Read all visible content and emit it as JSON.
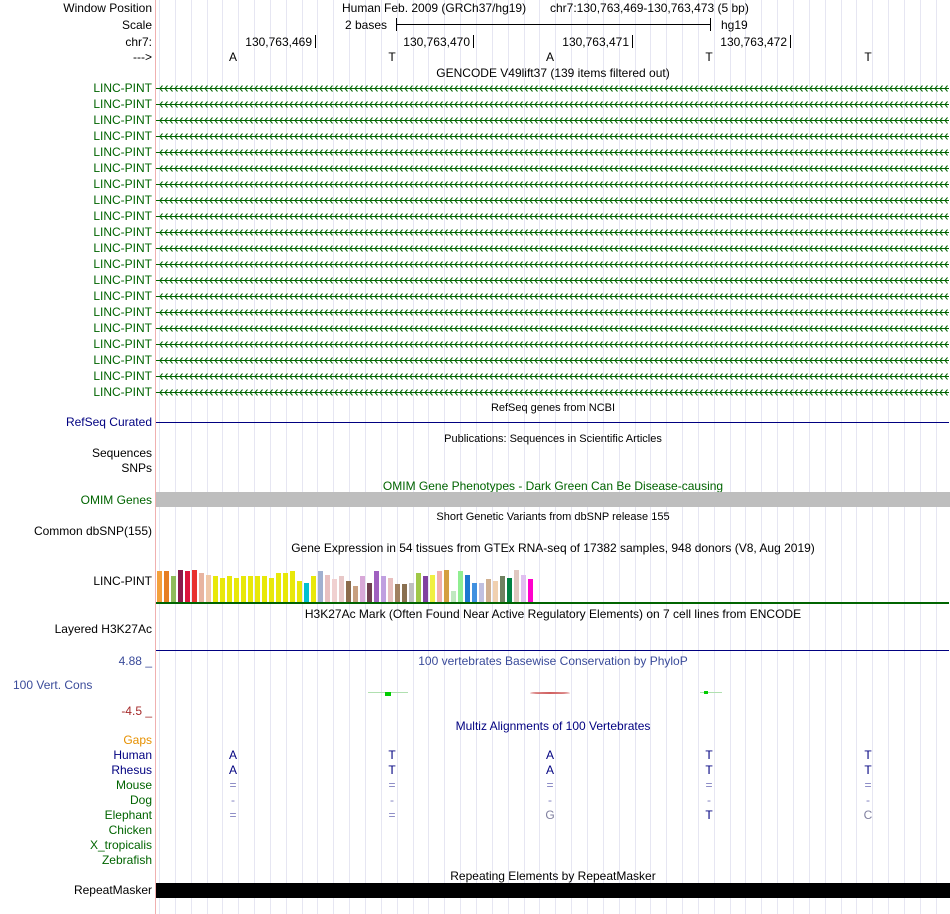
{
  "header": {
    "window_position_label": "Window Position",
    "scale_label": "Scale",
    "chrom_label": "chr7:",
    "strand_label": "--->",
    "assembly": "Human Feb. 2009 (GRCh37/hg19)",
    "position": "chr7:130,763,469-130,763,473 (5 bp)",
    "scale_text": "2 bases",
    "db": "hg19",
    "coords": [
      "130,763,469",
      "130,763,470",
      "130,763,471",
      "130,763,472"
    ],
    "bases": [
      "A",
      "T",
      "A",
      "T",
      "T"
    ]
  },
  "gencode": {
    "title": "GENCODE V49lift37 (139 items filtered out)",
    "items": [
      "LINC-PINT",
      "LINC-PINT",
      "LINC-PINT",
      "LINC-PINT",
      "LINC-PINT",
      "LINC-PINT",
      "LINC-PINT",
      "LINC-PINT",
      "LINC-PINT",
      "LINC-PINT",
      "LINC-PINT",
      "LINC-PINT",
      "LINC-PINT",
      "LINC-PINT",
      "LINC-PINT",
      "LINC-PINT",
      "LINC-PINT",
      "LINC-PINT",
      "LINC-PINT",
      "LINC-PINT"
    ],
    "color": "#006400"
  },
  "refseq": {
    "title": "RefSeq genes from NCBI",
    "label": "RefSeq Curated"
  },
  "publications": {
    "title": "Publications: Sequences in Scientific Articles",
    "labels": [
      "Sequences",
      "SNPs"
    ]
  },
  "omim": {
    "title": "OMIM Gene Phenotypes - Dark Green Can Be Disease-causing",
    "label": "OMIM Genes"
  },
  "dbsnp": {
    "title": "Short Genetic Variants from dbSNP release 155",
    "label": "Common dbSNP(155)"
  },
  "gtex": {
    "title": "Gene Expression in 54 tissues from GTEx RNA-seq of 17382 samples, 948 donors (V8, Aug 2019)",
    "label": "LINC-PINT",
    "values": [
      0.95,
      0.95,
      0.8,
      1.0,
      0.95,
      1.0,
      0.9,
      0.85,
      0.8,
      0.75,
      0.8,
      0.75,
      0.8,
      0.8,
      0.8,
      0.8,
      0.75,
      0.9,
      0.9,
      0.95,
      0.65,
      0.6,
      0.8,
      0.95,
      0.85,
      0.7,
      0.8,
      0.65,
      0.5,
      0.8,
      0.6,
      0.95,
      0.8,
      0.75,
      0.55,
      0.55,
      0.6,
      0.9,
      0.8,
      0.85,
      0.95,
      1.0,
      0.35,
      0.95,
      0.85,
      0.6,
      0.6,
      0.7,
      0.65,
      0.8,
      0.75,
      1.0,
      0.85,
      0.7
    ],
    "colors": [
      "#f4a03c",
      "#e67e22",
      "#8fbc5a",
      "#8b1a4a",
      "#dc143c",
      "#e8312f",
      "#e8b4a0",
      "#f0c8a8",
      "#e8e80a",
      "#e8e80a",
      "#e8e80a",
      "#e8e80a",
      "#e8e80a",
      "#e8e80a",
      "#e8e80a",
      "#e8e80a",
      "#e8e80a",
      "#e8e80a",
      "#e8e80a",
      "#e8e80a",
      "#e8e80a",
      "#00c0d0",
      "#e8e80a",
      "#a0b0d0",
      "#e8c0c0",
      "#f0d0d0",
      "#e8c8c8",
      "#8b6b4b",
      "#c8a080",
      "#d8a8d8",
      "#704050",
      "#a060c0",
      "#c0a0e0",
      "#e8c0c0",
      "#a08060",
      "#8a7050",
      "#c0c0c0",
      "#a0c848",
      "#8040a0",
      "#f0f040",
      "#f0b0b0",
      "#d4a040",
      "#c0e8c0",
      "#90ee90",
      "#1e78d0",
      "#4090e0",
      "#c0c0e0",
      "#d0b090",
      "#f0d0b0",
      "#708060",
      "#008040",
      "#e0c8c0",
      "#e0c0f0",
      "#ff00cc"
    ]
  },
  "h3k27ac": {
    "title": "H3K27Ac Mark (Often Found Near Active Regulatory Elements) on 7 cell lines from ENCODE",
    "label": "Layered H3K27Ac"
  },
  "cons": {
    "title": "100 vertebrates Basewise Conservation by PhyloP",
    "label": "100 Vert. Cons",
    "max": "4.88 _",
    "min": "-4.5 _"
  },
  "multiz": {
    "title": "Multiz Alignments of 100 Vertebrates",
    "gaps_label": "Gaps",
    "species": [
      {
        "name": "Human",
        "bases": [
          "A",
          "T",
          "A",
          "T",
          "T"
        ]
      },
      {
        "name": "Rhesus",
        "bases": [
          "A",
          "T",
          "A",
          "T",
          "T"
        ]
      },
      {
        "name": "Mouse",
        "bases": [
          "=",
          "=",
          "=",
          "=",
          "="
        ]
      },
      {
        "name": "Dog",
        "bases": [
          "-",
          "-",
          "-",
          "-",
          "-"
        ]
      },
      {
        "name": "Elephant",
        "bases": [
          "=",
          "=",
          "G",
          "T",
          "C"
        ]
      },
      {
        "name": "Chicken",
        "bases": [
          "",
          "",
          "",
          "",
          ""
        ]
      },
      {
        "name": "X_tropicalis",
        "bases": [
          "",
          "",
          "",
          "",
          ""
        ]
      },
      {
        "name": "Zebrafish",
        "bases": [
          "",
          "",
          "",
          "",
          ""
        ]
      }
    ]
  },
  "repeatmasker": {
    "title": "Repeating Elements by RepeatMasker",
    "label": "RepeatMasker"
  }
}
